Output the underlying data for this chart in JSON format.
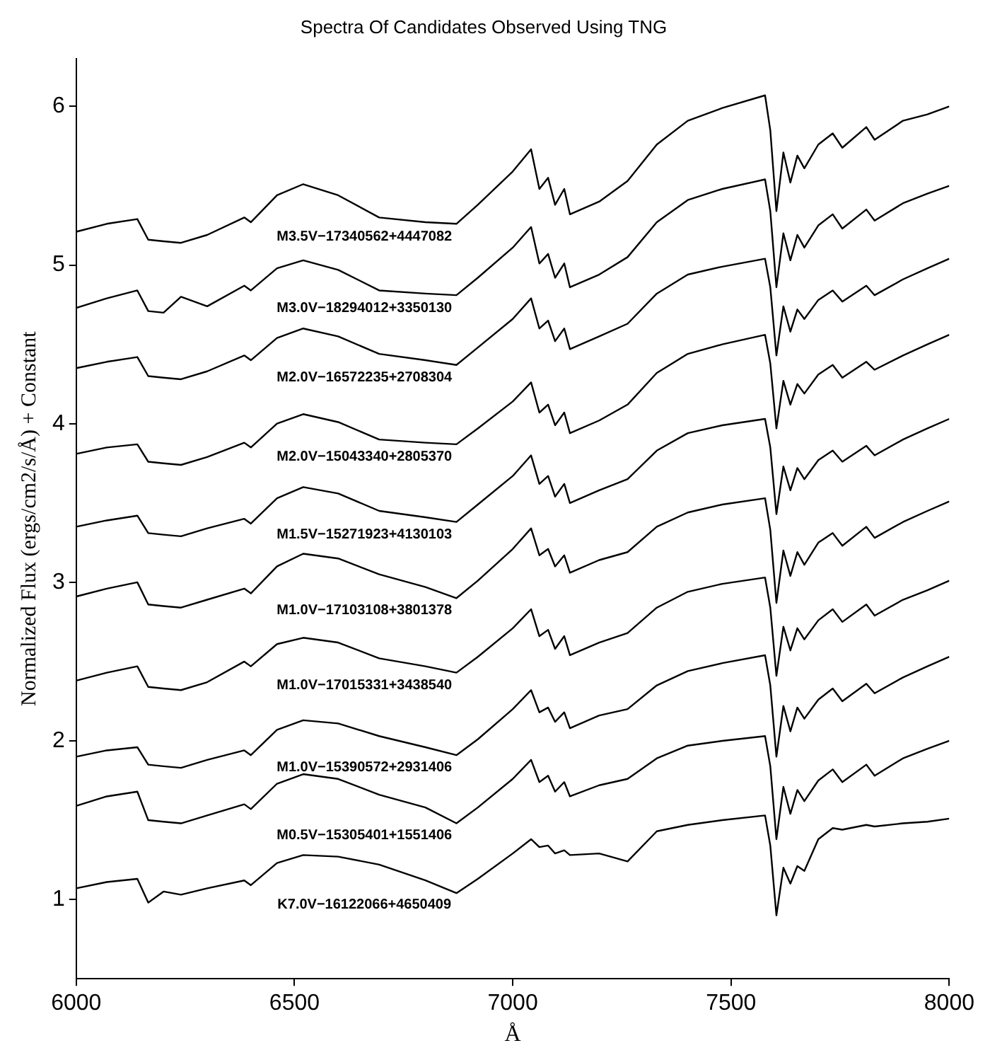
{
  "chart_data": {
    "type": "line",
    "title": "Spectra Of Candidates Observed Using TNG",
    "xlabel": "Å",
    "ylabel": "Normalized Flux (ergs/cm2/s/Å) + Constant",
    "x": [
      6000,
      6070,
      6140,
      6165,
      6200,
      6240,
      6300,
      6385,
      6400,
      6460,
      6520,
      6600,
      6694,
      6800,
      6871,
      6920,
      7000,
      7042,
      7061,
      7081,
      7097,
      7118,
      7131,
      7198,
      7263,
      7330,
      7401,
      7480,
      7578,
      7590,
      7604,
      7620,
      7636,
      7652,
      7668,
      7700,
      7733,
      7755,
      7810,
      7829,
      7894,
      7950,
      8000
    ],
    "series": [
      {
        "name": "M3.5V−17340562+4447082",
        "color": "#000000",
        "values": [
          5.21,
          5.26,
          5.29,
          5.16,
          5.15,
          5.14,
          5.19,
          5.3,
          5.27,
          5.44,
          5.51,
          5.44,
          5.3,
          5.27,
          5.26,
          5.38,
          5.59,
          5.73,
          5.48,
          5.55,
          5.38,
          5.48,
          5.32,
          5.4,
          5.53,
          5.76,
          5.91,
          5.99,
          6.07,
          5.85,
          5.34,
          5.71,
          5.52,
          5.69,
          5.61,
          5.76,
          5.83,
          5.74,
          5.87,
          5.79,
          5.91,
          5.95,
          6.0
        ]
      },
      {
        "name": "M3.0V−18294012+3350130",
        "color": "#000000",
        "values": [
          4.73,
          4.79,
          4.84,
          4.71,
          4.7,
          4.8,
          4.74,
          4.87,
          4.84,
          4.98,
          5.03,
          4.97,
          4.84,
          4.82,
          4.81,
          4.92,
          5.11,
          5.24,
          5.01,
          5.07,
          4.92,
          5.01,
          4.86,
          4.94,
          5.05,
          5.27,
          5.41,
          5.48,
          5.54,
          5.34,
          4.86,
          5.2,
          5.03,
          5.19,
          5.11,
          5.25,
          5.32,
          5.23,
          5.35,
          5.28,
          5.39,
          5.45,
          5.5
        ]
      },
      {
        "name": "M2.0V−16572235+2708304",
        "color": "#000000",
        "values": [
          4.35,
          4.39,
          4.42,
          4.3,
          4.29,
          4.28,
          4.33,
          4.43,
          4.4,
          4.54,
          4.6,
          4.55,
          4.44,
          4.4,
          4.37,
          4.48,
          4.66,
          4.79,
          4.6,
          4.65,
          4.52,
          4.6,
          4.47,
          4.55,
          4.63,
          4.82,
          4.94,
          4.99,
          5.04,
          4.86,
          4.43,
          4.74,
          4.58,
          4.72,
          4.66,
          4.78,
          4.84,
          4.77,
          4.87,
          4.81,
          4.91,
          4.98,
          5.04
        ]
      },
      {
        "name": "M2.0V−15043340+2805370",
        "color": "#000000",
        "values": [
          3.81,
          3.85,
          3.87,
          3.76,
          3.75,
          3.74,
          3.79,
          3.88,
          3.85,
          4.0,
          4.06,
          4.01,
          3.9,
          3.88,
          3.87,
          3.97,
          4.14,
          4.26,
          4.07,
          4.12,
          3.99,
          4.07,
          3.94,
          4.02,
          4.12,
          4.32,
          4.44,
          4.5,
          4.56,
          4.38,
          3.97,
          4.27,
          4.12,
          4.25,
          4.19,
          4.31,
          4.37,
          4.29,
          4.39,
          4.34,
          4.43,
          4.5,
          4.56
        ]
      },
      {
        "name": "M1.5V−15271923+4130103",
        "color": "#000000",
        "values": [
          3.35,
          3.39,
          3.42,
          3.31,
          3.3,
          3.29,
          3.34,
          3.4,
          3.37,
          3.53,
          3.6,
          3.56,
          3.45,
          3.41,
          3.38,
          3.49,
          3.67,
          3.8,
          3.62,
          3.67,
          3.54,
          3.62,
          3.5,
          3.58,
          3.65,
          3.83,
          3.94,
          3.99,
          4.03,
          3.85,
          3.43,
          3.73,
          3.58,
          3.72,
          3.65,
          3.77,
          3.83,
          3.76,
          3.86,
          3.8,
          3.9,
          3.97,
          4.03
        ]
      },
      {
        "name": "M1.0V−17103108+3801378",
        "color": "#000000",
        "values": [
          2.91,
          2.96,
          3.0,
          2.86,
          2.85,
          2.84,
          2.89,
          2.96,
          2.93,
          3.1,
          3.18,
          3.15,
          3.05,
          2.97,
          2.9,
          3.01,
          3.21,
          3.34,
          3.17,
          3.21,
          3.1,
          3.17,
          3.06,
          3.14,
          3.19,
          3.35,
          3.44,
          3.49,
          3.53,
          3.33,
          2.87,
          3.2,
          3.04,
          3.19,
          3.11,
          3.25,
          3.31,
          3.23,
          3.35,
          3.28,
          3.38,
          3.45,
          3.51
        ]
      },
      {
        "name": "M1.0V−17015331+3438540",
        "color": "#000000",
        "values": [
          2.38,
          2.43,
          2.47,
          2.34,
          2.33,
          2.32,
          2.37,
          2.5,
          2.47,
          2.61,
          2.65,
          2.62,
          2.52,
          2.47,
          2.43,
          2.53,
          2.71,
          2.83,
          2.66,
          2.7,
          2.58,
          2.66,
          2.54,
          2.62,
          2.68,
          2.84,
          2.94,
          2.99,
          3.03,
          2.84,
          2.41,
          2.72,
          2.57,
          2.71,
          2.64,
          2.76,
          2.83,
          2.75,
          2.86,
          2.79,
          2.89,
          2.95,
          3.01
        ]
      },
      {
        "name": "M1.0V−15390572+2931406",
        "color": "#000000",
        "values": [
          1.9,
          1.94,
          1.96,
          1.85,
          1.84,
          1.83,
          1.88,
          1.94,
          1.91,
          2.07,
          2.13,
          2.11,
          2.03,
          1.96,
          1.91,
          2.01,
          2.2,
          2.32,
          2.18,
          2.21,
          2.12,
          2.18,
          2.08,
          2.16,
          2.2,
          2.35,
          2.44,
          2.49,
          2.54,
          2.35,
          1.9,
          2.22,
          2.06,
          2.21,
          2.14,
          2.26,
          2.33,
          2.25,
          2.36,
          2.3,
          2.4,
          2.47,
          2.53
        ]
      },
      {
        "name": "M0.5V−15305401+1551406",
        "color": "#000000",
        "values": [
          1.59,
          1.65,
          1.68,
          1.5,
          1.49,
          1.48,
          1.53,
          1.6,
          1.57,
          1.73,
          1.79,
          1.76,
          1.66,
          1.58,
          1.48,
          1.58,
          1.76,
          1.88,
          1.74,
          1.78,
          1.68,
          1.74,
          1.65,
          1.72,
          1.76,
          1.89,
          1.97,
          2.0,
          2.03,
          1.84,
          1.38,
          1.71,
          1.54,
          1.69,
          1.62,
          1.75,
          1.82,
          1.74,
          1.85,
          1.78,
          1.89,
          1.95,
          2.0
        ]
      },
      {
        "name": "K7.0V−16122066+4650409",
        "color": "#000000",
        "values": [
          1.07,
          1.11,
          1.13,
          0.98,
          1.05,
          1.03,
          1.07,
          1.12,
          1.09,
          1.23,
          1.28,
          1.27,
          1.22,
          1.12,
          1.04,
          1.13,
          1.29,
          1.38,
          1.33,
          1.34,
          1.29,
          1.31,
          1.28,
          1.29,
          1.24,
          1.43,
          1.47,
          1.5,
          1.53,
          1.34,
          0.9,
          1.2,
          1.1,
          1.21,
          1.18,
          1.38,
          1.45,
          1.44,
          1.47,
          1.46,
          1.48,
          1.49,
          1.51
        ]
      }
    ],
    "xlim": [
      6000,
      8000
    ],
    "xticks": [
      6000,
      6500,
      7000,
      7500,
      8000
    ],
    "ylim": [
      0.5,
      6.3
    ],
    "yticks": [
      1,
      2,
      3,
      4,
      5,
      6
    ],
    "grid": false,
    "legend": false,
    "marker": "none",
    "line_style": "solid"
  }
}
